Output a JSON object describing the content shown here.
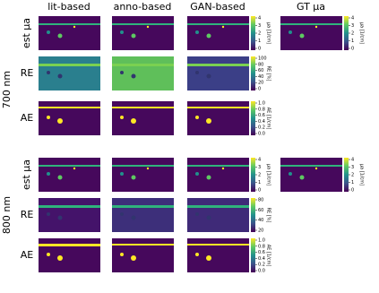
{
  "column_headers": [
    "lit-based",
    "anno-based",
    "GAN-based",
    "GT μa"
  ],
  "groups": [
    {
      "label": "700 nm",
      "rows": [
        {
          "label": "est μa",
          "colorbar_label": "μa [1/cm]",
          "colorbar_ticks": [
            "4",
            "3",
            "2",
            "1",
            "0"
          ]
        },
        {
          "label": "RE",
          "colorbar_label": "RE [%]",
          "colorbar_ticks": [
            "100",
            "80",
            "60",
            "40",
            "20",
            "0"
          ]
        },
        {
          "label": "AE",
          "colorbar_label": "AE [1/cm]",
          "colorbar_ticks": [
            "1.0",
            "0.8",
            "0.6",
            "0.4",
            "0.2",
            "0.0"
          ]
        }
      ]
    },
    {
      "label": "800 nm",
      "rows": [
        {
          "label": "est μa",
          "colorbar_label": "μa [1/cm]",
          "colorbar_ticks": [
            "4",
            "3",
            "2",
            "1",
            "0"
          ]
        },
        {
          "label": "RE",
          "colorbar_label": "RE [%]",
          "colorbar_ticks": [
            "80",
            "60",
            "40",
            "20"
          ]
        },
        {
          "label": "AE",
          "colorbar_label": "AE [1/cm]",
          "colorbar_ticks": [
            "1.0",
            "0.8",
            "0.6",
            "0.4",
            "0.2",
            "0.0"
          ]
        }
      ]
    }
  ]
}
